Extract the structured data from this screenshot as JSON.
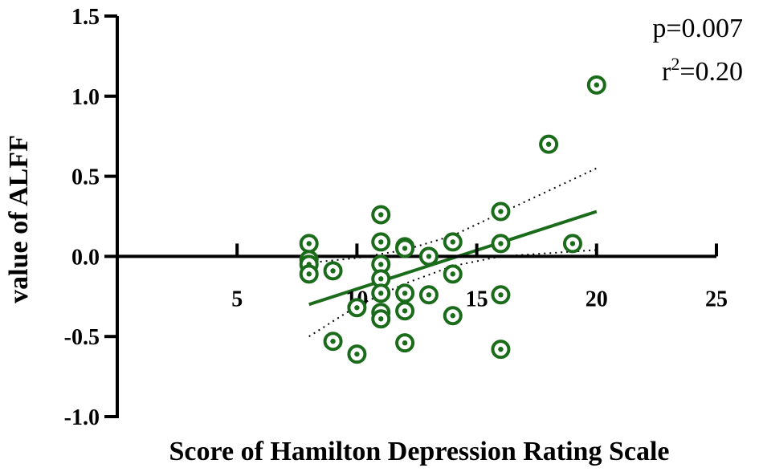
{
  "chart_data": {
    "type": "scatter",
    "title": "",
    "xlabel": "Score of Hamilton Depression Rating Scale",
    "ylabel": "value of ALFF",
    "xlim": [
      0,
      25
    ],
    "ylim": [
      -1.0,
      1.5
    ],
    "x_ticks": [
      5,
      10,
      15,
      20,
      25
    ],
    "x_tick_labels": [
      "5",
      "10",
      "15",
      "20",
      "25"
    ],
    "y_ticks": [
      -1.0,
      -0.5,
      0.0,
      0.5,
      1.0,
      1.5
    ],
    "y_tick_labels": [
      "-1.0",
      "-0.5",
      "0.0",
      "0.5",
      "1.0",
      "1.5"
    ],
    "grid": false,
    "marker_color": "#1a6b1a",
    "line_color": "#1a6b1a",
    "points": [
      {
        "x": 8,
        "y": 0.08
      },
      {
        "x": 8,
        "y": -0.02
      },
      {
        "x": 8,
        "y": -0.05
      },
      {
        "x": 8,
        "y": -0.11
      },
      {
        "x": 9,
        "y": -0.09
      },
      {
        "x": 9,
        "y": -0.53
      },
      {
        "x": 10,
        "y": -0.32
      },
      {
        "x": 10,
        "y": -0.61
      },
      {
        "x": 11,
        "y": 0.26
      },
      {
        "x": 11,
        "y": 0.09
      },
      {
        "x": 11,
        "y": -0.05
      },
      {
        "x": 11,
        "y": -0.14
      },
      {
        "x": 11,
        "y": -0.23
      },
      {
        "x": 11,
        "y": -0.35
      },
      {
        "x": 11,
        "y": -0.39
      },
      {
        "x": 12,
        "y": 0.06
      },
      {
        "x": 12,
        "y": 0.05
      },
      {
        "x": 12,
        "y": -0.23
      },
      {
        "x": 12,
        "y": -0.34
      },
      {
        "x": 12,
        "y": -0.54
      },
      {
        "x": 13,
        "y": 0.0
      },
      {
        "x": 13,
        "y": -0.24
      },
      {
        "x": 14,
        "y": 0.09
      },
      {
        "x": 14,
        "y": -0.11
      },
      {
        "x": 14,
        "y": -0.37
      },
      {
        "x": 16,
        "y": 0.28
      },
      {
        "x": 16,
        "y": 0.08
      },
      {
        "x": 16,
        "y": -0.24
      },
      {
        "x": 16,
        "y": -0.58
      },
      {
        "x": 18,
        "y": 0.7
      },
      {
        "x": 19,
        "y": 0.08
      },
      {
        "x": 20,
        "y": 1.07
      }
    ],
    "fit_line": [
      {
        "x": 8,
        "y": -0.3
      },
      {
        "x": 20,
        "y": 0.28
      }
    ],
    "ci_upper": [
      {
        "x": 8,
        "y": -0.04
      },
      {
        "x": 10,
        "y": -0.01
      },
      {
        "x": 12,
        "y": 0.04
      },
      {
        "x": 14,
        "y": 0.13
      },
      {
        "x": 16,
        "y": 0.27
      },
      {
        "x": 18,
        "y": 0.41
      },
      {
        "x": 20,
        "y": 0.55
      }
    ],
    "ci_lower": [
      {
        "x": 8,
        "y": -0.5
      },
      {
        "x": 10,
        "y": -0.31
      },
      {
        "x": 12,
        "y": -0.17
      },
      {
        "x": 14,
        "y": -0.06
      },
      {
        "x": 16,
        "y": 0.0
      },
      {
        "x": 18,
        "y": 0.02
      },
      {
        "x": 20,
        "y": 0.04
      }
    ]
  },
  "stats": {
    "p_text": "p=0.007",
    "r_prefix": "r",
    "r_exp": "2",
    "r_value": "=0.20"
  }
}
